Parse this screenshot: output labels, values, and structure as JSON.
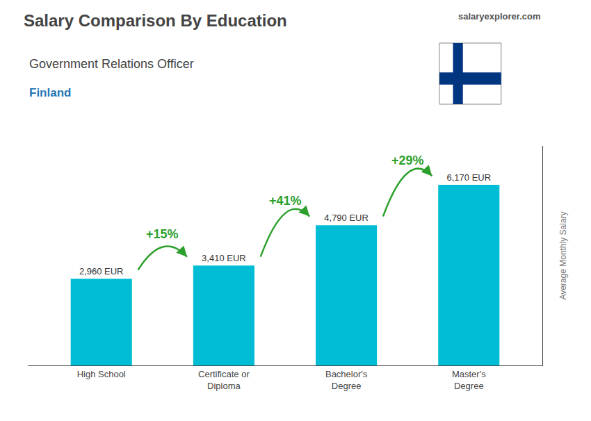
{
  "chart_data": {
    "type": "bar",
    "title": "Salary Comparison By Education",
    "subtitle": [
      "Government Relations Officer",
      "Finland"
    ],
    "source": "salaryexplorer.com",
    "ylabel": "Average Monthly Salary",
    "categories": [
      "High School",
      "Certificate or\nDiploma",
      "Bachelor's\nDegree",
      "Master's\nDegree"
    ],
    "values": [
      2960,
      3410,
      4790,
      6170
    ],
    "value_labels": [
      "2,960 EUR",
      "3,410 EUR",
      "4,790 EUR",
      "6,170 EUR"
    ],
    "data_labels": true,
    "annotations": [
      "+15%",
      "+41%",
      "+29%"
    ],
    "color": "#00bcd4",
    "ylim": [
      0,
      7500
    ],
    "tick_labels": "x",
    "grid": false
  }
}
